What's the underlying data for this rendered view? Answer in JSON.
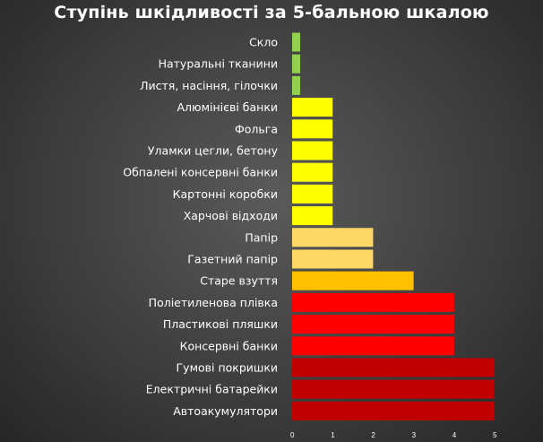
{
  "chart_data": {
    "type": "bar",
    "orientation": "horizontal",
    "title": "Ступінь шкідливості за 5-бальною шкалою",
    "categories": [
      "Скло",
      "Натуральні тканини",
      "Листя, насіння, гілочки",
      "Алюмінієві банки",
      "Фольга",
      "Уламки цегли, бетону",
      "Обпалені консервні банки",
      "Картонні коробки",
      "Харчові відходи",
      "Папір",
      "Газетний папір",
      "Старе взуття",
      "Поліетиленова плівка",
      "Пластикові пляшки",
      "Консервні банки",
      "Гумові покришки",
      "Електричні батарейки",
      "Автоакумулятори"
    ],
    "values": [
      0.2,
      0.2,
      0.2,
      1,
      1,
      1,
      1,
      1,
      1,
      2,
      2,
      3,
      4,
      4,
      4,
      5,
      5,
      5
    ],
    "colors": [
      "#92d050",
      "#92d050",
      "#92d050",
      "#ffff00",
      "#ffff00",
      "#ffff00",
      "#ffff00",
      "#ffff00",
      "#ffff00",
      "#ffd966",
      "#ffd966",
      "#ffc000",
      "#ff0000",
      "#ff0000",
      "#ff0000",
      "#c00000",
      "#c00000",
      "#c00000"
    ],
    "xticks": [
      "0",
      "1",
      "2",
      "3",
      "4",
      "5"
    ],
    "xlim": [
      0,
      5
    ],
    "grid": false,
    "legend": "none"
  }
}
